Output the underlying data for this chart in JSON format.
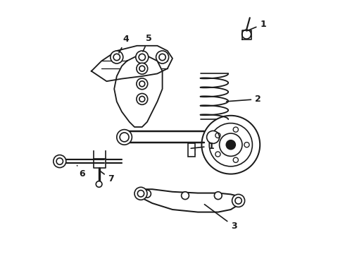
{
  "title": "",
  "bg_color": "#ffffff",
  "line_color": "#1a1a1a",
  "line_width": 1.2,
  "fig_width": 4.9,
  "fig_height": 3.6,
  "dpi": 100
}
